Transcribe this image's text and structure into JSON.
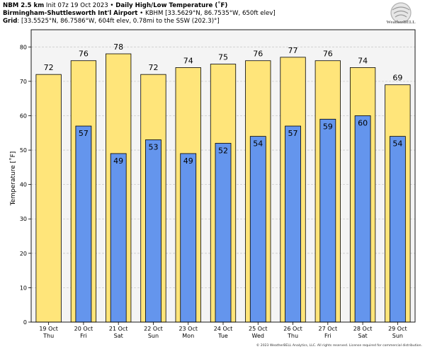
{
  "header": {
    "line1_model": "NBM 2.5 km",
    "line1_init": "Init 07z 19 Oct 2023",
    "line1_sep": "•",
    "line1_title": "Daily High/Low Temperature (˚F)",
    "line2_site": "Birmingham-Shuttlesworth Int'l Airport",
    "line2_sep": "•",
    "line2_info": "KBHM [33.5629°N, 86.7535°W, 650ft elev]",
    "line3_label": "Grid",
    "line3_info": ": [33.5525°N, 86.7586°W, 604ft elev, 0.78mi to the SSW (202.3)°]"
  },
  "logo": {
    "text": "WeatherBELL",
    "icon": "weatherbell-swirl-logo"
  },
  "copyright": "© 2023 WeatherBELL Analytics, LLC. All rights reserved. License required for commercial distribution.",
  "colors": {
    "high_fill": "#ffe57a",
    "low_fill": "#6495ed",
    "plot_bg": "#f4f4f4",
    "grid": "#cccccc",
    "bar_stroke": "#000000"
  },
  "chart_data": {
    "type": "bar",
    "ylabel": "Temperature [˚F]",
    "ylim": [
      0,
      85
    ],
    "yticks": [
      0,
      10,
      20,
      30,
      40,
      50,
      60,
      70,
      80
    ],
    "grid": true,
    "categories": [
      [
        "19 Oct",
        "Thu"
      ],
      [
        "20 Oct",
        "Fri"
      ],
      [
        "21 Oct",
        "Sat"
      ],
      [
        "22 Oct",
        "Sun"
      ],
      [
        "23 Oct",
        "Mon"
      ],
      [
        "24 Oct",
        "Tue"
      ],
      [
        "25 Oct",
        "Wed"
      ],
      [
        "26 Oct",
        "Thu"
      ],
      [
        "27 Oct",
        "Fri"
      ],
      [
        "28 Oct",
        "Sat"
      ],
      [
        "29 Oct",
        "Sun"
      ]
    ],
    "series": [
      {
        "values": [
          72,
          76,
          78,
          72,
          74,
          75,
          76,
          77,
          76,
          74,
          69
        ]
      },
      {
        "values": [
          null,
          57,
          49,
          53,
          49,
          52,
          54,
          57,
          59,
          60,
          54
        ]
      }
    ]
  }
}
